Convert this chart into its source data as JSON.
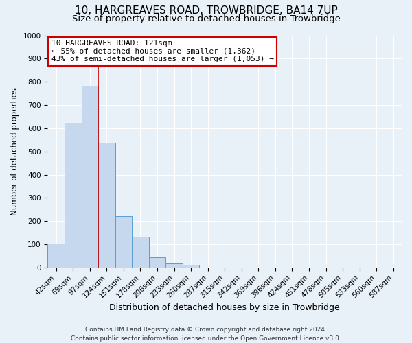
{
  "title": "10, HARGREAVES ROAD, TROWBRIDGE, BA14 7UP",
  "subtitle": "Size of property relative to detached houses in Trowbridge",
  "xlabel": "Distribution of detached houses by size in Trowbridge",
  "ylabel": "Number of detached properties",
  "footer_line1": "Contains HM Land Registry data © Crown copyright and database right 2024.",
  "footer_line2": "Contains public sector information licensed under the Open Government Licence v3.0.",
  "bar_labels": [
    "42sqm",
    "69sqm",
    "97sqm",
    "124sqm",
    "151sqm",
    "178sqm",
    "206sqm",
    "233sqm",
    "260sqm",
    "287sqm",
    "315sqm",
    "342sqm",
    "369sqm",
    "396sqm",
    "424sqm",
    "451sqm",
    "478sqm",
    "505sqm",
    "533sqm",
    "560sqm",
    "587sqm"
  ],
  "bar_values": [
    103,
    622,
    783,
    538,
    220,
    133,
    44,
    18,
    10,
    0,
    0,
    0,
    0,
    0,
    0,
    0,
    0,
    0,
    0,
    0,
    0
  ],
  "bar_color": "#c5d8ed",
  "bar_edge_color": "#5a9fd4",
  "vline_color": "#cc0000",
  "annotation_title": "10 HARGREAVES ROAD: 121sqm",
  "annotation_line1": "← 55% of detached houses are smaller (1,362)",
  "annotation_line2": "43% of semi-detached houses are larger (1,053) →",
  "annotation_box_color": "#ffffff",
  "annotation_box_edge_color": "#cc0000",
  "ylim_max": 1000,
  "yticks": [
    0,
    100,
    200,
    300,
    400,
    500,
    600,
    700,
    800,
    900,
    1000
  ],
  "background_color": "#e8f0f8",
  "grid_color": "#ffffff",
  "title_fontsize": 11,
  "subtitle_fontsize": 9.5,
  "xlabel_fontsize": 9,
  "ylabel_fontsize": 8.5,
  "tick_fontsize": 7.5,
  "footer_fontsize": 6.5
}
